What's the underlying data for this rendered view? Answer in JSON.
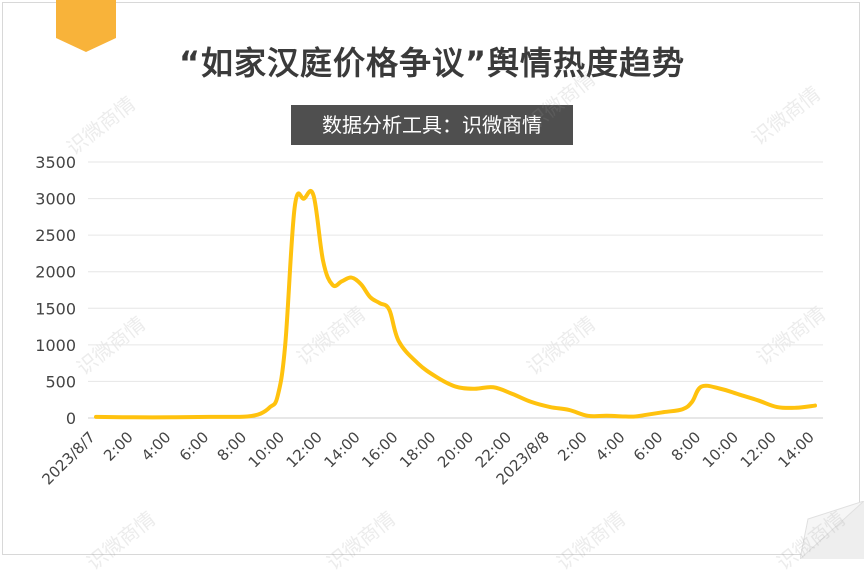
{
  "header": {
    "title": "“如家汉庭价格争议”舆情热度趋势",
    "subtitle": "数据分析工具：识微商情"
  },
  "watermark": {
    "text": "识微商情"
  },
  "colors": {
    "line": "#FFC20E",
    "ribbon": "#F8B33A",
    "subtitle_bg": "#4F4F4F",
    "grid": "#E6E6E6"
  },
  "chart_data": {
    "type": "line",
    "title": "“如家汉庭价格争议”舆情热度趋势",
    "ylim": [
      0,
      3500
    ],
    "y_ticks": [
      0,
      500,
      1000,
      1500,
      2000,
      2500,
      3000,
      3500
    ],
    "grid": true,
    "x_tick_labels": [
      "2023/8/7",
      "2:00",
      "4:00",
      "6:00",
      "8:00",
      "10:00",
      "12:00",
      "14:00",
      "16:00",
      "18:00",
      "20:00",
      "22:00",
      "2023/8/8",
      "2:00",
      "4:00",
      "6:00",
      "8:00",
      "10:00",
      "12:00",
      "14:00"
    ],
    "series": [
      {
        "x": [
          0,
          2,
          4,
          6,
          7,
          8,
          8.7,
          9.2,
          9.6,
          10,
          10.5,
          11,
          11.5,
          12,
          12.5,
          13,
          13.5,
          14,
          14.5,
          15,
          15.5,
          16,
          17,
          18,
          19,
          20,
          21,
          22,
          23,
          24,
          25,
          26,
          27,
          28,
          28.5,
          29,
          30,
          31,
          31.5,
          32,
          33,
          34,
          35,
          36,
          37,
          38
        ],
        "y": [
          15,
          10,
          10,
          15,
          15,
          20,
          60,
          150,
          300,
          1000,
          2880,
          3000,
          3040,
          2150,
          1820,
          1870,
          1920,
          1830,
          1650,
          1570,
          1480,
          1050,
          750,
          560,
          430,
          400,
          420,
          330,
          220,
          150,
          110,
          30,
          30,
          20,
          20,
          40,
          80,
          120,
          220,
          430,
          400,
          320,
          240,
          150,
          140,
          170
        ]
      }
    ]
  }
}
